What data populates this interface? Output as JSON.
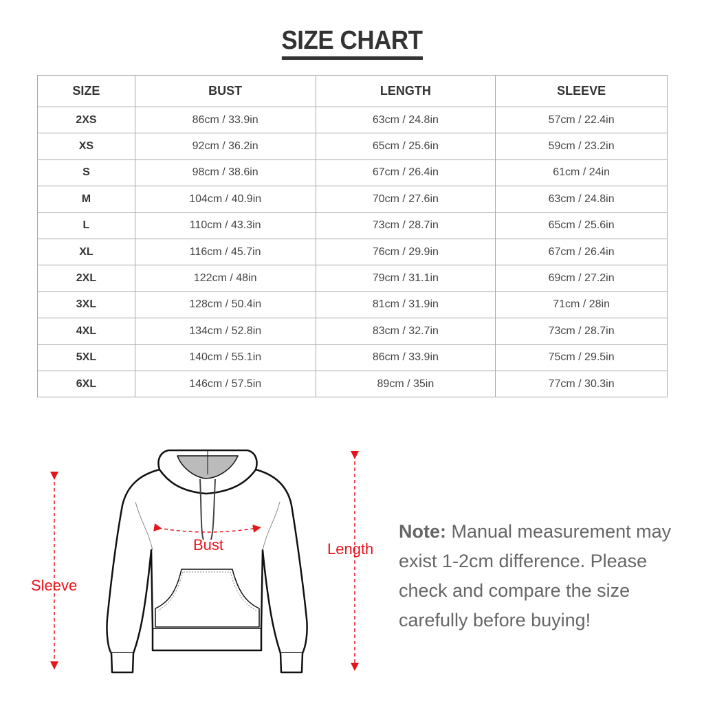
{
  "title": "SIZE CHART",
  "table": {
    "headers": [
      "SIZE",
      "BUST",
      "LENGTH",
      "SLEEVE"
    ],
    "rows": [
      [
        "2XS",
        "86cm / 33.9in",
        "63cm / 24.8in",
        "57cm / 22.4in"
      ],
      [
        "XS",
        "92cm / 36.2in",
        "65cm / 25.6in",
        "59cm / 23.2in"
      ],
      [
        "S",
        "98cm / 38.6in",
        "67cm / 26.4in",
        "61cm / 24in"
      ],
      [
        "M",
        "104cm / 40.9in",
        "70cm / 27.6in",
        "63cm / 24.8in"
      ],
      [
        "L",
        "110cm / 43.3in",
        "73cm / 28.7in",
        "65cm / 25.6in"
      ],
      [
        "XL",
        "116cm / 45.7in",
        "76cm / 29.9in",
        "67cm / 26.4in"
      ],
      [
        "2XL",
        "122cm / 48in",
        "79cm / 31.1in",
        "69cm / 27.2in"
      ],
      [
        "3XL",
        "128cm / 50.4in",
        "81cm / 31.9in",
        "71cm / 28in"
      ],
      [
        "4XL",
        "134cm / 52.8in",
        "83cm / 32.7in",
        "73cm / 28.7in"
      ],
      [
        "5XL",
        "140cm / 55.1in",
        "86cm / 33.9in",
        "75cm / 29.5in"
      ],
      [
        "6XL",
        "146cm / 57.5in",
        "89cm / 35in",
        "77cm / 30.3in"
      ]
    ]
  },
  "diagram": {
    "labels": {
      "sleeve": "Sleeve",
      "bust": "Bust",
      "length": "Length"
    },
    "accent_color": "#e8141c",
    "icon": "hoodie-outline"
  },
  "note": {
    "label": "Note:",
    "text": " Manual measurement may exist 1-2cm difference. Please check and compare the size carefully before buying!"
  }
}
